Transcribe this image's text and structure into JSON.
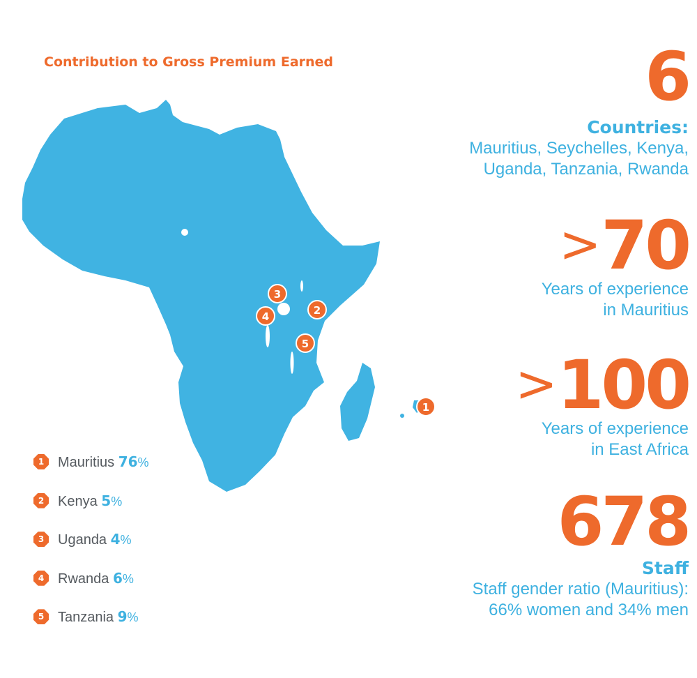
{
  "colors": {
    "orange": "#ee6a2c",
    "blue": "#3eb1e0",
    "map_fill": "#40b3e2",
    "grey_text": "#555a5f"
  },
  "map": {
    "title": "Contribution to Gross Premium Earned",
    "markers": [
      {
        "number": "1",
        "country": "Mauritius"
      },
      {
        "number": "2",
        "country": "Kenya"
      },
      {
        "number": "3",
        "country": "Uganda"
      },
      {
        "number": "4",
        "country": "Rwanda"
      },
      {
        "number": "5",
        "country": "Tanzania"
      }
    ]
  },
  "legend": [
    {
      "number": "1",
      "country": "Mauritius",
      "value": "76",
      "unit": "%"
    },
    {
      "number": "2",
      "country": "Kenya",
      "value": "5",
      "unit": "%"
    },
    {
      "number": "3",
      "country": "Uganda",
      "value": "4",
      "unit": "%"
    },
    {
      "number": "4",
      "country": "Rwanda",
      "value": "6",
      "unit": "%"
    },
    {
      "number": "5",
      "country": "Tanzania",
      "value": "9",
      "unit": "%"
    }
  ],
  "stats": {
    "countries": {
      "number": "6",
      "label": "Countries:",
      "line1": "Mauritius, Seychelles, Kenya,",
      "line2": "Uganda, Tanzania, Rwanda"
    },
    "mauritius_experience": {
      "prefix": ">",
      "number": "70",
      "line1": "Years of experience",
      "line2": "in Mauritius"
    },
    "east_africa_experience": {
      "prefix": ">",
      "number": "100",
      "line1": "Years of experience",
      "line2": "in East Africa"
    },
    "staff": {
      "number": "678",
      "label": "Staff",
      "line1": "Staff gender ratio (Mauritius):",
      "line2": "66% women and 34% men"
    }
  }
}
